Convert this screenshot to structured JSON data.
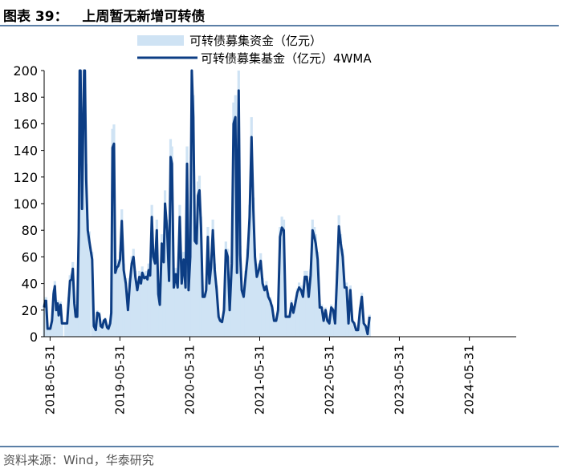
{
  "title": "图表 39：   上周暂无新增可转债",
  "source": "资料来源：Wind，华泰研究",
  "colors": {
    "bar": "#cfe3f4",
    "line": "#0c3d84",
    "rule": "#5b7fa6"
  },
  "chart_data": {
    "type": "bar+line",
    "legend": [
      {
        "name": "可转债募集资金（亿元）",
        "kind": "bar"
      },
      {
        "name": "可转债募集基金（亿元）4WMA",
        "kind": "line"
      }
    ],
    "legend_position": "top-center",
    "ylim": [
      0,
      200
    ],
    "yticks": [
      0,
      20,
      40,
      60,
      80,
      100,
      120,
      140,
      160,
      180,
      200
    ],
    "x_tick_labels": [
      "2018-05-31",
      "2019-05-31",
      "2020-05-31",
      "2021-05-31",
      "2022-05-31",
      "2023-05-31",
      "2024-05-31"
    ],
    "x_start": "2018-04-30",
    "x_end": "2025-01-31",
    "grid": false,
    "series": [
      {
        "name": "可转债募集基金（亿元）4WMA",
        "kind": "line",
        "points": [
          [
            "2018-04-30",
            22
          ],
          [
            "2018-05-05",
            27
          ],
          [
            "2018-05-10",
            27
          ],
          [
            "2018-05-18",
            6
          ],
          [
            "2018-06-01",
            6
          ],
          [
            "2018-06-10",
            12
          ],
          [
            "2018-06-18",
            32
          ],
          [
            "2018-06-25",
            38
          ],
          [
            "2018-07-02",
            20
          ],
          [
            "2018-07-10",
            25
          ],
          [
            "2018-07-15",
            16
          ],
          [
            "2018-07-25",
            24
          ],
          [
            "2018-08-01",
            10
          ],
          [
            "2018-08-20",
            10
          ],
          [
            "2018-08-28",
            10
          ],
          [
            "2018-09-05",
            27
          ],
          [
            "2018-09-12",
            42
          ],
          [
            "2018-09-20",
            43
          ],
          [
            "2018-09-27",
            51
          ],
          [
            "2018-10-05",
            25
          ],
          [
            "2018-10-12",
            15
          ],
          [
            "2018-10-20",
            15
          ],
          [
            "2018-10-28",
            80
          ],
          [
            "2018-11-02",
            200
          ],
          [
            "2018-11-06",
            200
          ],
          [
            "2018-11-14",
            96
          ],
          [
            "2018-11-20",
            157
          ],
          [
            "2018-11-25",
            200
          ],
          [
            "2018-11-29",
            200
          ],
          [
            "2018-12-06",
            118
          ],
          [
            "2018-12-14",
            80
          ],
          [
            "2018-12-22",
            72
          ],
          [
            "2019-01-06",
            58
          ],
          [
            "2019-01-15",
            8
          ],
          [
            "2019-01-25",
            5
          ],
          [
            "2019-02-02",
            18
          ],
          [
            "2019-02-12",
            17
          ],
          [
            "2019-02-20",
            8
          ],
          [
            "2019-02-28",
            7
          ],
          [
            "2019-03-08",
            12
          ],
          [
            "2019-03-15",
            13
          ],
          [
            "2019-03-25",
            7
          ],
          [
            "2019-04-01",
            6
          ],
          [
            "2019-04-10",
            10
          ],
          [
            "2019-04-16",
            18
          ],
          [
            "2019-04-22",
            142
          ],
          [
            "2019-04-30",
            145
          ],
          [
            "2019-05-07",
            48
          ],
          [
            "2019-05-15",
            52
          ],
          [
            "2019-05-22",
            53
          ],
          [
            "2019-06-01",
            58
          ],
          [
            "2019-06-10",
            87
          ],
          [
            "2019-06-20",
            50
          ],
          [
            "2019-07-01",
            40
          ],
          [
            "2019-07-12",
            20
          ],
          [
            "2019-07-22",
            40
          ],
          [
            "2019-08-01",
            55
          ],
          [
            "2019-08-10",
            60
          ],
          [
            "2019-08-20",
            45
          ],
          [
            "2019-08-30",
            35
          ],
          [
            "2019-09-10",
            45
          ],
          [
            "2019-09-18",
            40
          ],
          [
            "2019-09-25",
            48
          ],
          [
            "2019-10-05",
            44
          ],
          [
            "2019-10-15",
            45
          ],
          [
            "2019-10-22",
            43
          ],
          [
            "2019-10-28",
            50
          ],
          [
            "2019-11-05",
            46
          ],
          [
            "2019-11-14",
            90
          ],
          [
            "2019-11-22",
            60
          ],
          [
            "2019-12-01",
            55
          ],
          [
            "2019-12-10",
            80
          ],
          [
            "2019-12-18",
            32
          ],
          [
            "2019-12-26",
            24
          ],
          [
            "2020-01-05",
            70
          ],
          [
            "2020-01-15",
            56
          ],
          [
            "2020-01-22",
            100
          ],
          [
            "2020-02-02",
            80
          ],
          [
            "2020-02-12",
            42
          ],
          [
            "2020-02-20",
            135
          ],
          [
            "2020-02-27",
            130
          ],
          [
            "2020-03-08",
            37
          ],
          [
            "2020-03-18",
            47
          ],
          [
            "2020-03-28",
            37
          ],
          [
            "2020-04-08",
            90
          ],
          [
            "2020-04-18",
            40
          ],
          [
            "2020-04-28",
            58
          ],
          [
            "2020-05-08",
            37
          ],
          [
            "2020-05-16",
            130
          ],
          [
            "2020-05-24",
            35
          ],
          [
            "2020-06-02",
            60
          ],
          [
            "2020-06-10",
            200
          ],
          [
            "2020-06-18",
            165
          ],
          [
            "2020-06-26",
            72
          ],
          [
            "2020-07-05",
            70
          ],
          [
            "2020-07-12",
            106
          ],
          [
            "2020-07-20",
            110
          ],
          [
            "2020-07-28",
            82
          ],
          [
            "2020-08-06",
            30
          ],
          [
            "2020-08-16",
            30
          ],
          [
            "2020-08-24",
            35
          ],
          [
            "2020-09-02",
            75
          ],
          [
            "2020-09-10",
            40
          ],
          [
            "2020-09-18",
            52
          ],
          [
            "2020-09-28",
            80
          ],
          [
            "2020-10-08",
            50
          ],
          [
            "2020-10-18",
            35
          ],
          [
            "2020-10-28",
            15
          ],
          [
            "2020-11-05",
            12
          ],
          [
            "2020-11-15",
            11
          ],
          [
            "2020-11-25",
            20
          ],
          [
            "2020-12-05",
            65
          ],
          [
            "2020-12-15",
            60
          ],
          [
            "2020-12-25",
            20
          ],
          [
            "2021-01-05",
            55
          ],
          [
            "2021-01-14",
            160
          ],
          [
            "2021-01-24",
            165
          ],
          [
            "2021-02-01",
            48
          ],
          [
            "2021-02-10",
            185
          ],
          [
            "2021-02-18",
            62
          ],
          [
            "2021-02-26",
            35
          ],
          [
            "2021-03-08",
            30
          ],
          [
            "2021-03-18",
            45
          ],
          [
            "2021-03-28",
            60
          ],
          [
            "2021-04-08",
            90
          ],
          [
            "2021-04-18",
            150
          ],
          [
            "2021-04-28",
            95
          ],
          [
            "2021-05-06",
            60
          ],
          [
            "2021-05-16",
            45
          ],
          [
            "2021-05-26",
            50
          ],
          [
            "2021-06-05",
            57
          ],
          [
            "2021-06-15",
            40
          ],
          [
            "2021-06-25",
            35
          ],
          [
            "2021-07-05",
            38
          ],
          [
            "2021-07-15",
            30
          ],
          [
            "2021-07-25",
            27
          ],
          [
            "2021-08-04",
            22
          ],
          [
            "2021-08-14",
            12
          ],
          [
            "2021-08-25",
            12
          ],
          [
            "2021-09-04",
            20
          ],
          [
            "2021-09-14",
            75
          ],
          [
            "2021-09-24",
            82
          ],
          [
            "2021-10-04",
            80
          ],
          [
            "2021-10-14",
            15
          ],
          [
            "2021-10-24",
            15
          ],
          [
            "2021-11-03",
            15
          ],
          [
            "2021-11-13",
            25
          ],
          [
            "2021-11-23",
            18
          ],
          [
            "2021-12-03",
            25
          ],
          [
            "2021-12-13",
            33
          ],
          [
            "2021-12-23",
            37
          ],
          [
            "2022-01-02",
            35
          ],
          [
            "2022-01-12",
            30
          ],
          [
            "2022-01-22",
            45
          ],
          [
            "2022-02-01",
            45
          ],
          [
            "2022-02-11",
            30
          ],
          [
            "2022-02-21",
            46
          ],
          [
            "2022-03-03",
            80
          ],
          [
            "2022-03-13",
            75
          ],
          [
            "2022-03-20",
            70
          ],
          [
            "2022-03-30",
            58
          ],
          [
            "2022-04-10",
            22
          ],
          [
            "2022-04-20",
            22
          ],
          [
            "2022-04-30",
            12
          ],
          [
            "2022-05-10",
            20
          ],
          [
            "2022-05-20",
            12
          ],
          [
            "2022-05-30",
            10
          ],
          [
            "2022-06-09",
            22
          ],
          [
            "2022-06-19",
            20
          ],
          [
            "2022-06-29",
            10
          ],
          [
            "2022-07-09",
            45
          ],
          [
            "2022-07-19",
            83
          ],
          [
            "2022-07-29",
            70
          ],
          [
            "2022-08-08",
            60
          ],
          [
            "2022-08-18",
            37
          ],
          [
            "2022-08-28",
            37
          ],
          [
            "2022-09-07",
            10
          ],
          [
            "2022-09-17",
            35
          ],
          [
            "2022-09-27",
            12
          ],
          [
            "2022-10-07",
            10
          ],
          [
            "2022-10-17",
            5
          ],
          [
            "2022-10-27",
            5
          ],
          [
            "2022-11-06",
            20
          ],
          [
            "2022-11-16",
            30
          ],
          [
            "2022-11-26",
            10
          ],
          [
            "2022-12-06",
            8
          ],
          [
            "2022-12-16",
            2
          ],
          [
            "2022-12-26",
            15
          ]
        ]
      }
    ]
  }
}
